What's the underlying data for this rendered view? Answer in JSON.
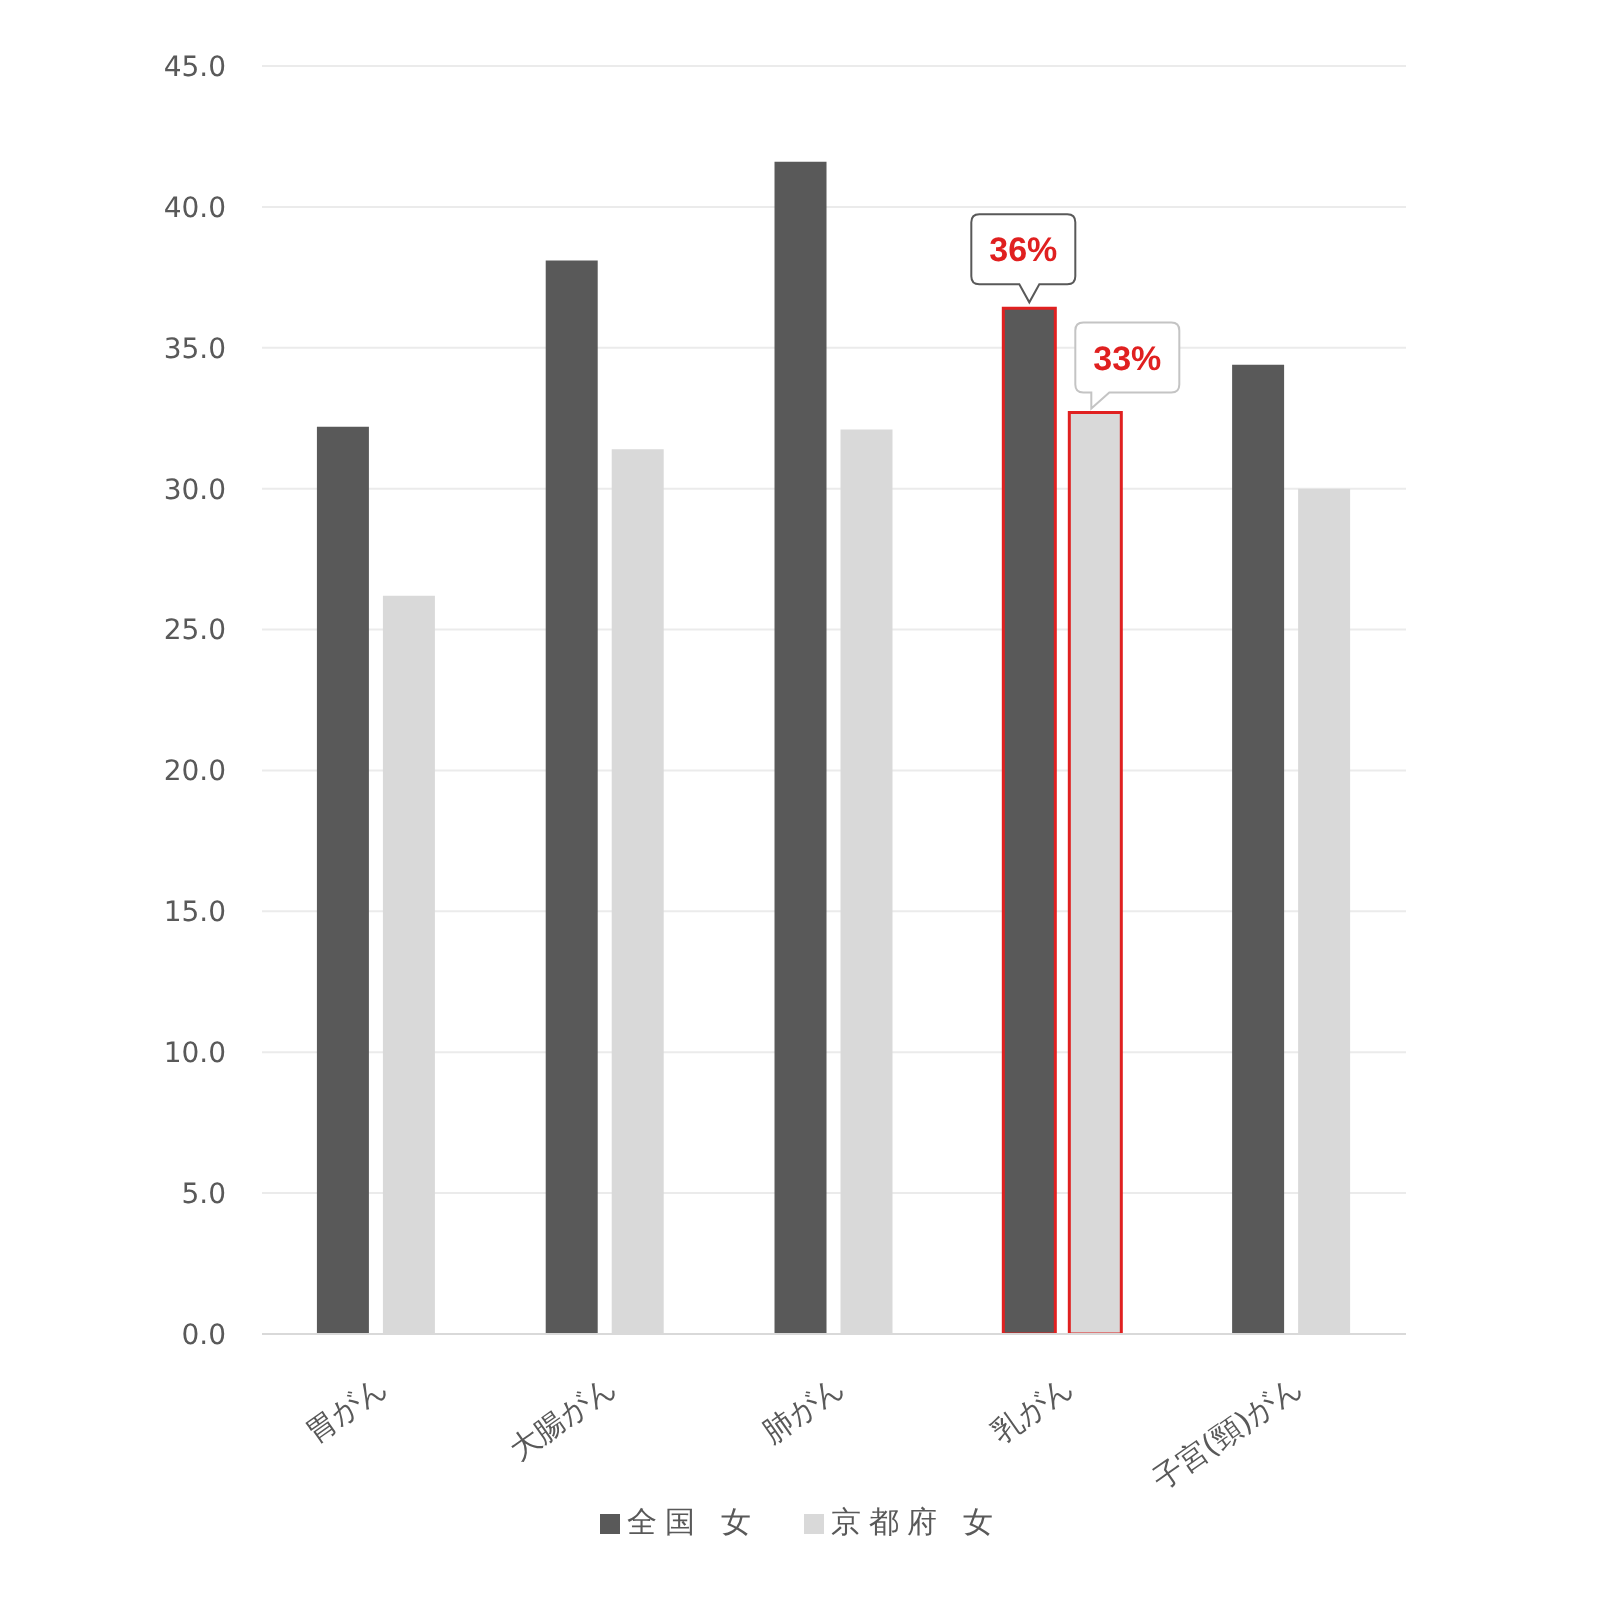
{
  "chart_data": {
    "type": "bar",
    "categories": [
      "胃がん",
      "大腸がん",
      "肺がん",
      "乳がん",
      "子宮(頸)がん"
    ],
    "series": [
      {
        "name": "全国 女",
        "color": "#595959",
        "values": [
          32.2,
          38.1,
          41.6,
          36.4,
          34.4
        ],
        "value_labels": [
          null,
          null,
          null,
          "36%",
          null
        ]
      },
      {
        "name": "京都府 女",
        "color": "#d9d9d9",
        "values": [
          26.2,
          31.4,
          32.1,
          32.7,
          30.0
        ],
        "value_labels": [
          null,
          null,
          null,
          "33%",
          null
        ]
      }
    ],
    "ylim": [
      0,
      45
    ],
    "yticks": [
      {
        "value": 0,
        "label": "0.0"
      },
      {
        "value": 5,
        "label": "5.0"
      },
      {
        "value": 10,
        "label": "10.0"
      },
      {
        "value": 15,
        "label": "15.0"
      },
      {
        "value": 20,
        "label": "20.0"
      },
      {
        "value": 25,
        "label": "25.0"
      },
      {
        "value": 30,
        "label": "30.0"
      },
      {
        "value": 35,
        "label": "35.0"
      },
      {
        "value": 40,
        "label": "40.0"
      },
      {
        "value": 45,
        "label": "45.0"
      }
    ],
    "grid": "y",
    "legend": "bottom"
  }
}
